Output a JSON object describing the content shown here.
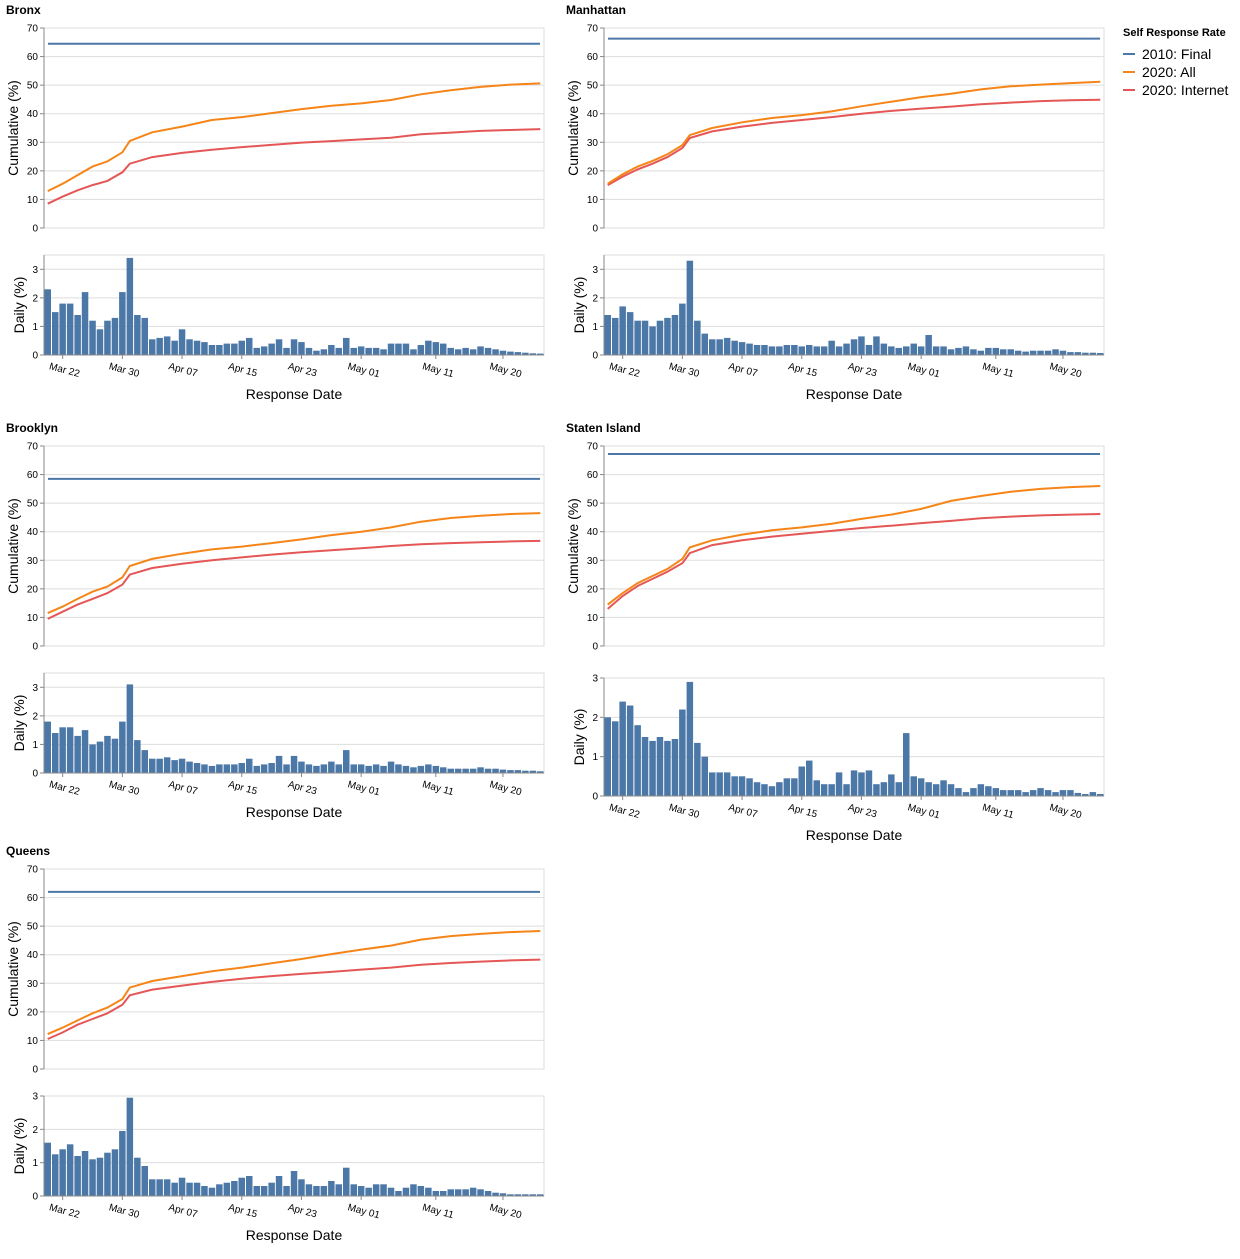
{
  "colors": {
    "final_2010": "#4c78a8",
    "all_2020": "#f58518",
    "internet_2020": "#e45756",
    "bar": "#4c78a8",
    "grid": "#dddddd",
    "axis": "#888888"
  },
  "legend": {
    "title": "Self Response Rate",
    "items": [
      {
        "label": "2010: Final",
        "color": "#4c78a8"
      },
      {
        "label": "2020: All",
        "color": "#f58518"
      },
      {
        "label": "2020: Internet",
        "color": "#e45756"
      }
    ]
  },
  "chart_data": {
    "type": "faceted line + bar",
    "x_domain": [
      "2020-03-20",
      "2020-05-26"
    ],
    "x_ticks": [
      "Mar 22",
      "Mar 30",
      "Apr 07",
      "Apr 15",
      "Apr 23",
      "May 01",
      "May 11",
      "May 20"
    ],
    "x_tick_dates": [
      "2020-03-22",
      "2020-03-30",
      "2020-04-07",
      "2020-04-15",
      "2020-04-23",
      "2020-05-01",
      "2020-05-11",
      "2020-05-20"
    ],
    "xlabel": "Response Date",
    "cumulative": {
      "ylabel": "Cumulative (%)",
      "ylim": [
        0,
        70
      ],
      "ticks": [
        0,
        10,
        20,
        30,
        40,
        50,
        60,
        70
      ]
    },
    "daily": {
      "ylabel": "Daily (%)",
      "ylim_default": [
        0,
        3.5
      ],
      "ticks": [
        0,
        1,
        2,
        3
      ]
    },
    "boroughs": [
      {
        "name": "Bronx",
        "final_2010": 64.5,
        "daily_ymax": 3.5,
        "all_2020_points": [
          [
            0,
            12.9
          ],
          [
            2,
            15.5
          ],
          [
            4,
            18.5
          ],
          [
            6,
            21.5
          ],
          [
            8,
            23.3
          ],
          [
            10,
            26.5
          ],
          [
            11,
            30.5
          ],
          [
            14,
            33.5
          ],
          [
            18,
            35.5
          ],
          [
            22,
            37.8
          ],
          [
            26,
            38.8
          ],
          [
            30,
            40.2
          ],
          [
            34,
            41.6
          ],
          [
            38,
            42.8
          ],
          [
            42,
            43.6
          ],
          [
            46,
            44.8
          ],
          [
            50,
            46.8
          ],
          [
            54,
            48.2
          ],
          [
            58,
            49.4
          ],
          [
            62,
            50.2
          ],
          [
            66,
            50.6
          ]
        ],
        "internet_2020_points": [
          [
            0,
            8.5
          ],
          [
            2,
            11.0
          ],
          [
            4,
            13.2
          ],
          [
            6,
            15.0
          ],
          [
            8,
            16.5
          ],
          [
            10,
            19.5
          ],
          [
            11,
            22.5
          ],
          [
            14,
            24.8
          ],
          [
            18,
            26.3
          ],
          [
            22,
            27.4
          ],
          [
            26,
            28.3
          ],
          [
            30,
            29.1
          ],
          [
            34,
            29.9
          ],
          [
            38,
            30.4
          ],
          [
            42,
            31.0
          ],
          [
            46,
            31.6
          ],
          [
            50,
            32.8
          ],
          [
            54,
            33.4
          ],
          [
            58,
            34.0
          ],
          [
            62,
            34.3
          ],
          [
            66,
            34.6
          ]
        ],
        "daily_values": [
          2.3,
          1.5,
          1.8,
          1.8,
          1.4,
          2.2,
          1.2,
          0.9,
          1.2,
          1.3,
          2.2,
          3.4,
          1.4,
          1.3,
          0.55,
          0.6,
          0.65,
          0.5,
          0.9,
          0.55,
          0.5,
          0.45,
          0.35,
          0.35,
          0.4,
          0.4,
          0.5,
          0.6,
          0.25,
          0.3,
          0.4,
          0.55,
          0.25,
          0.55,
          0.45,
          0.25,
          0.15,
          0.2,
          0.35,
          0.25,
          0.6,
          0.25,
          0.3,
          0.25,
          0.25,
          0.2,
          0.4,
          0.4,
          0.4,
          0.2,
          0.35,
          0.5,
          0.45,
          0.4,
          0.25,
          0.2,
          0.25,
          0.2,
          0.3,
          0.25,
          0.2,
          0.15,
          0.12,
          0.1,
          0.08,
          0.06,
          0.05
        ]
      },
      {
        "name": "Manhattan",
        "final_2010": 66.3,
        "daily_ymax": 3.5,
        "all_2020_points": [
          [
            0,
            15.5
          ],
          [
            2,
            18.8
          ],
          [
            4,
            21.5
          ],
          [
            6,
            23.5
          ],
          [
            8,
            25.8
          ],
          [
            10,
            29.0
          ],
          [
            11,
            32.5
          ],
          [
            14,
            35.0
          ],
          [
            18,
            37.0
          ],
          [
            22,
            38.5
          ],
          [
            26,
            39.5
          ],
          [
            30,
            40.8
          ],
          [
            34,
            42.6
          ],
          [
            38,
            44.2
          ],
          [
            42,
            45.8
          ],
          [
            46,
            47.0
          ],
          [
            50,
            48.5
          ],
          [
            54,
            49.6
          ],
          [
            58,
            50.2
          ],
          [
            62,
            50.7
          ],
          [
            66,
            51.2
          ]
        ],
        "internet_2020_points": [
          [
            0,
            15.0
          ],
          [
            2,
            18.0
          ],
          [
            4,
            20.5
          ],
          [
            6,
            22.5
          ],
          [
            8,
            24.8
          ],
          [
            10,
            28.0
          ],
          [
            11,
            31.5
          ],
          [
            14,
            33.8
          ],
          [
            18,
            35.5
          ],
          [
            22,
            36.8
          ],
          [
            26,
            37.8
          ],
          [
            30,
            38.8
          ],
          [
            34,
            40.0
          ],
          [
            38,
            41.0
          ],
          [
            42,
            41.8
          ],
          [
            46,
            42.5
          ],
          [
            50,
            43.3
          ],
          [
            54,
            43.9
          ],
          [
            58,
            44.4
          ],
          [
            62,
            44.7
          ],
          [
            66,
            44.9
          ]
        ],
        "daily_values": [
          1.4,
          1.3,
          1.7,
          1.5,
          1.2,
          1.2,
          1.0,
          1.2,
          1.3,
          1.4,
          1.8,
          3.3,
          1.2,
          0.75,
          0.55,
          0.55,
          0.6,
          0.5,
          0.45,
          0.4,
          0.35,
          0.35,
          0.3,
          0.3,
          0.35,
          0.35,
          0.3,
          0.35,
          0.3,
          0.3,
          0.5,
          0.3,
          0.4,
          0.55,
          0.65,
          0.35,
          0.65,
          0.4,
          0.3,
          0.25,
          0.3,
          0.4,
          0.3,
          0.7,
          0.3,
          0.3,
          0.2,
          0.25,
          0.3,
          0.2,
          0.15,
          0.25,
          0.25,
          0.2,
          0.2,
          0.15,
          0.12,
          0.15,
          0.15,
          0.15,
          0.2,
          0.15,
          0.1,
          0.1,
          0.08,
          0.08,
          0.07
        ]
      },
      {
        "name": "Brooklyn",
        "final_2010": 58.5,
        "daily_ymax": 3.5,
        "all_2020_points": [
          [
            0,
            11.5
          ],
          [
            2,
            13.8
          ],
          [
            4,
            16.5
          ],
          [
            6,
            19.0
          ],
          [
            8,
            20.8
          ],
          [
            10,
            24.0
          ],
          [
            11,
            28.0
          ],
          [
            14,
            30.5
          ],
          [
            18,
            32.3
          ],
          [
            22,
            33.8
          ],
          [
            26,
            34.8
          ],
          [
            30,
            36.0
          ],
          [
            34,
            37.3
          ],
          [
            38,
            38.8
          ],
          [
            42,
            40.0
          ],
          [
            46,
            41.5
          ],
          [
            50,
            43.5
          ],
          [
            54,
            44.8
          ],
          [
            58,
            45.6
          ],
          [
            62,
            46.2
          ],
          [
            66,
            46.5
          ]
        ],
        "internet_2020_points": [
          [
            0,
            9.5
          ],
          [
            2,
            12.0
          ],
          [
            4,
            14.5
          ],
          [
            6,
            16.5
          ],
          [
            8,
            18.5
          ],
          [
            10,
            21.5
          ],
          [
            11,
            25.0
          ],
          [
            14,
            27.3
          ],
          [
            18,
            28.8
          ],
          [
            22,
            30.0
          ],
          [
            26,
            31.0
          ],
          [
            30,
            32.0
          ],
          [
            34,
            32.8
          ],
          [
            38,
            33.5
          ],
          [
            42,
            34.2
          ],
          [
            46,
            35.0
          ],
          [
            50,
            35.6
          ],
          [
            54,
            36.0
          ],
          [
            58,
            36.3
          ],
          [
            62,
            36.6
          ],
          [
            66,
            36.8
          ]
        ],
        "daily_values": [
          1.8,
          1.4,
          1.6,
          1.6,
          1.3,
          1.5,
          1.0,
          1.1,
          1.3,
          1.2,
          1.8,
          3.1,
          1.15,
          0.8,
          0.5,
          0.5,
          0.55,
          0.45,
          0.5,
          0.4,
          0.35,
          0.3,
          0.25,
          0.3,
          0.3,
          0.3,
          0.35,
          0.5,
          0.25,
          0.3,
          0.35,
          0.6,
          0.3,
          0.6,
          0.4,
          0.3,
          0.25,
          0.3,
          0.4,
          0.3,
          0.8,
          0.3,
          0.3,
          0.25,
          0.3,
          0.25,
          0.4,
          0.3,
          0.25,
          0.2,
          0.25,
          0.3,
          0.25,
          0.2,
          0.15,
          0.15,
          0.15,
          0.15,
          0.2,
          0.15,
          0.15,
          0.12,
          0.1,
          0.1,
          0.08,
          0.08,
          0.06
        ]
      },
      {
        "name": "Staten Island",
        "final_2010": 67.2,
        "daily_ymax": 3.0,
        "all_2020_points": [
          [
            0,
            14.5
          ],
          [
            2,
            18.5
          ],
          [
            4,
            22.0
          ],
          [
            6,
            24.5
          ],
          [
            8,
            27.0
          ],
          [
            10,
            30.5
          ],
          [
            11,
            34.5
          ],
          [
            14,
            37.0
          ],
          [
            18,
            39.0
          ],
          [
            22,
            40.5
          ],
          [
            26,
            41.5
          ],
          [
            30,
            42.8
          ],
          [
            34,
            44.5
          ],
          [
            38,
            46.0
          ],
          [
            42,
            48.0
          ],
          [
            46,
            50.8
          ],
          [
            50,
            52.5
          ],
          [
            54,
            54.0
          ],
          [
            58,
            55.0
          ],
          [
            62,
            55.6
          ],
          [
            66,
            56.0
          ]
        ],
        "internet_2020_points": [
          [
            0,
            13.0
          ],
          [
            2,
            17.5
          ],
          [
            4,
            21.0
          ],
          [
            6,
            23.5
          ],
          [
            8,
            26.0
          ],
          [
            10,
            29.0
          ],
          [
            11,
            32.5
          ],
          [
            14,
            35.3
          ],
          [
            18,
            37.0
          ],
          [
            22,
            38.3
          ],
          [
            26,
            39.3
          ],
          [
            30,
            40.3
          ],
          [
            34,
            41.3
          ],
          [
            38,
            42.1
          ],
          [
            42,
            43.0
          ],
          [
            46,
            43.8
          ],
          [
            50,
            44.7
          ],
          [
            54,
            45.3
          ],
          [
            58,
            45.7
          ],
          [
            62,
            46.0
          ],
          [
            66,
            46.2
          ]
        ],
        "daily_values": [
          2.0,
          1.9,
          2.4,
          2.3,
          1.8,
          1.5,
          1.4,
          1.5,
          1.4,
          1.45,
          2.2,
          2.9,
          1.35,
          1.0,
          0.6,
          0.6,
          0.6,
          0.5,
          0.5,
          0.45,
          0.35,
          0.3,
          0.25,
          0.35,
          0.45,
          0.45,
          0.75,
          0.9,
          0.4,
          0.3,
          0.3,
          0.6,
          0.3,
          0.65,
          0.6,
          0.65,
          0.3,
          0.35,
          0.55,
          0.35,
          1.6,
          0.5,
          0.45,
          0.35,
          0.3,
          0.4,
          0.3,
          0.2,
          0.1,
          0.2,
          0.3,
          0.25,
          0.2,
          0.15,
          0.15,
          0.15,
          0.1,
          0.15,
          0.2,
          0.15,
          0.1,
          0.15,
          0.15,
          0.08,
          0.05,
          0.1,
          0.05
        ]
      },
      {
        "name": "Queens",
        "final_2010": 62.0,
        "daily_ymax": 3.0,
        "all_2020_points": [
          [
            0,
            12.2
          ],
          [
            2,
            14.5
          ],
          [
            4,
            17.0
          ],
          [
            6,
            19.5
          ],
          [
            8,
            21.5
          ],
          [
            10,
            24.5
          ],
          [
            11,
            28.5
          ],
          [
            14,
            30.8
          ],
          [
            18,
            32.5
          ],
          [
            22,
            34.2
          ],
          [
            26,
            35.5
          ],
          [
            30,
            37.0
          ],
          [
            34,
            38.5
          ],
          [
            38,
            40.2
          ],
          [
            42,
            41.8
          ],
          [
            46,
            43.2
          ],
          [
            50,
            45.3
          ],
          [
            54,
            46.5
          ],
          [
            58,
            47.3
          ],
          [
            62,
            47.9
          ],
          [
            66,
            48.3
          ]
        ],
        "internet_2020_points": [
          [
            0,
            10.5
          ],
          [
            2,
            12.8
          ],
          [
            4,
            15.5
          ],
          [
            6,
            17.5
          ],
          [
            8,
            19.5
          ],
          [
            10,
            22.5
          ],
          [
            11,
            25.8
          ],
          [
            14,
            27.8
          ],
          [
            18,
            29.2
          ],
          [
            22,
            30.5
          ],
          [
            26,
            31.6
          ],
          [
            30,
            32.5
          ],
          [
            34,
            33.3
          ],
          [
            38,
            34.0
          ],
          [
            42,
            34.8
          ],
          [
            46,
            35.5
          ],
          [
            50,
            36.5
          ],
          [
            54,
            37.1
          ],
          [
            58,
            37.6
          ],
          [
            62,
            38.0
          ],
          [
            66,
            38.3
          ]
        ],
        "daily_values": [
          1.6,
          1.25,
          1.4,
          1.55,
          1.2,
          1.35,
          1.1,
          1.15,
          1.3,
          1.4,
          1.95,
          2.95,
          1.15,
          0.9,
          0.5,
          0.5,
          0.5,
          0.4,
          0.55,
          0.4,
          0.4,
          0.3,
          0.25,
          0.35,
          0.4,
          0.45,
          0.55,
          0.6,
          0.3,
          0.3,
          0.4,
          0.6,
          0.3,
          0.75,
          0.5,
          0.35,
          0.3,
          0.3,
          0.45,
          0.35,
          0.85,
          0.35,
          0.3,
          0.25,
          0.35,
          0.35,
          0.25,
          0.15,
          0.25,
          0.35,
          0.3,
          0.25,
          0.15,
          0.15,
          0.2,
          0.2,
          0.2,
          0.25,
          0.2,
          0.15,
          0.1,
          0.08,
          0.05,
          0.05,
          0.05,
          0.05,
          0.05
        ]
      }
    ]
  }
}
